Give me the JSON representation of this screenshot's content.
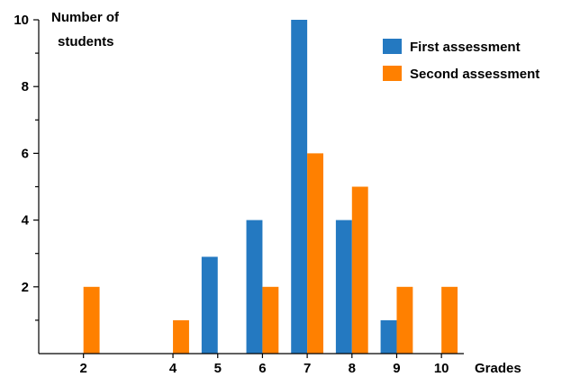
{
  "chart_data": {
    "type": "bar",
    "x": [
      2,
      4,
      5,
      6,
      7,
      8,
      9,
      10
    ],
    "series": [
      {
        "name": "First assessment",
        "color": "#2479c1",
        "values": [
          0,
          0,
          2.9,
          4,
          10,
          4,
          1,
          0
        ]
      },
      {
        "name": "Second assessment",
        "color": "#ff8000",
        "values": [
          2,
          1,
          0,
          2,
          6,
          5,
          2,
          2
        ]
      }
    ],
    "xlabel": "Grades",
    "ylabel": [
      "Number of",
      "students"
    ],
    "ylim": [
      0,
      10
    ],
    "yticks_labeled": [
      2,
      4,
      6,
      8,
      10
    ],
    "xlim": [
      1,
      10.5
    ],
    "legend_position": "top-right",
    "grid": false
  }
}
